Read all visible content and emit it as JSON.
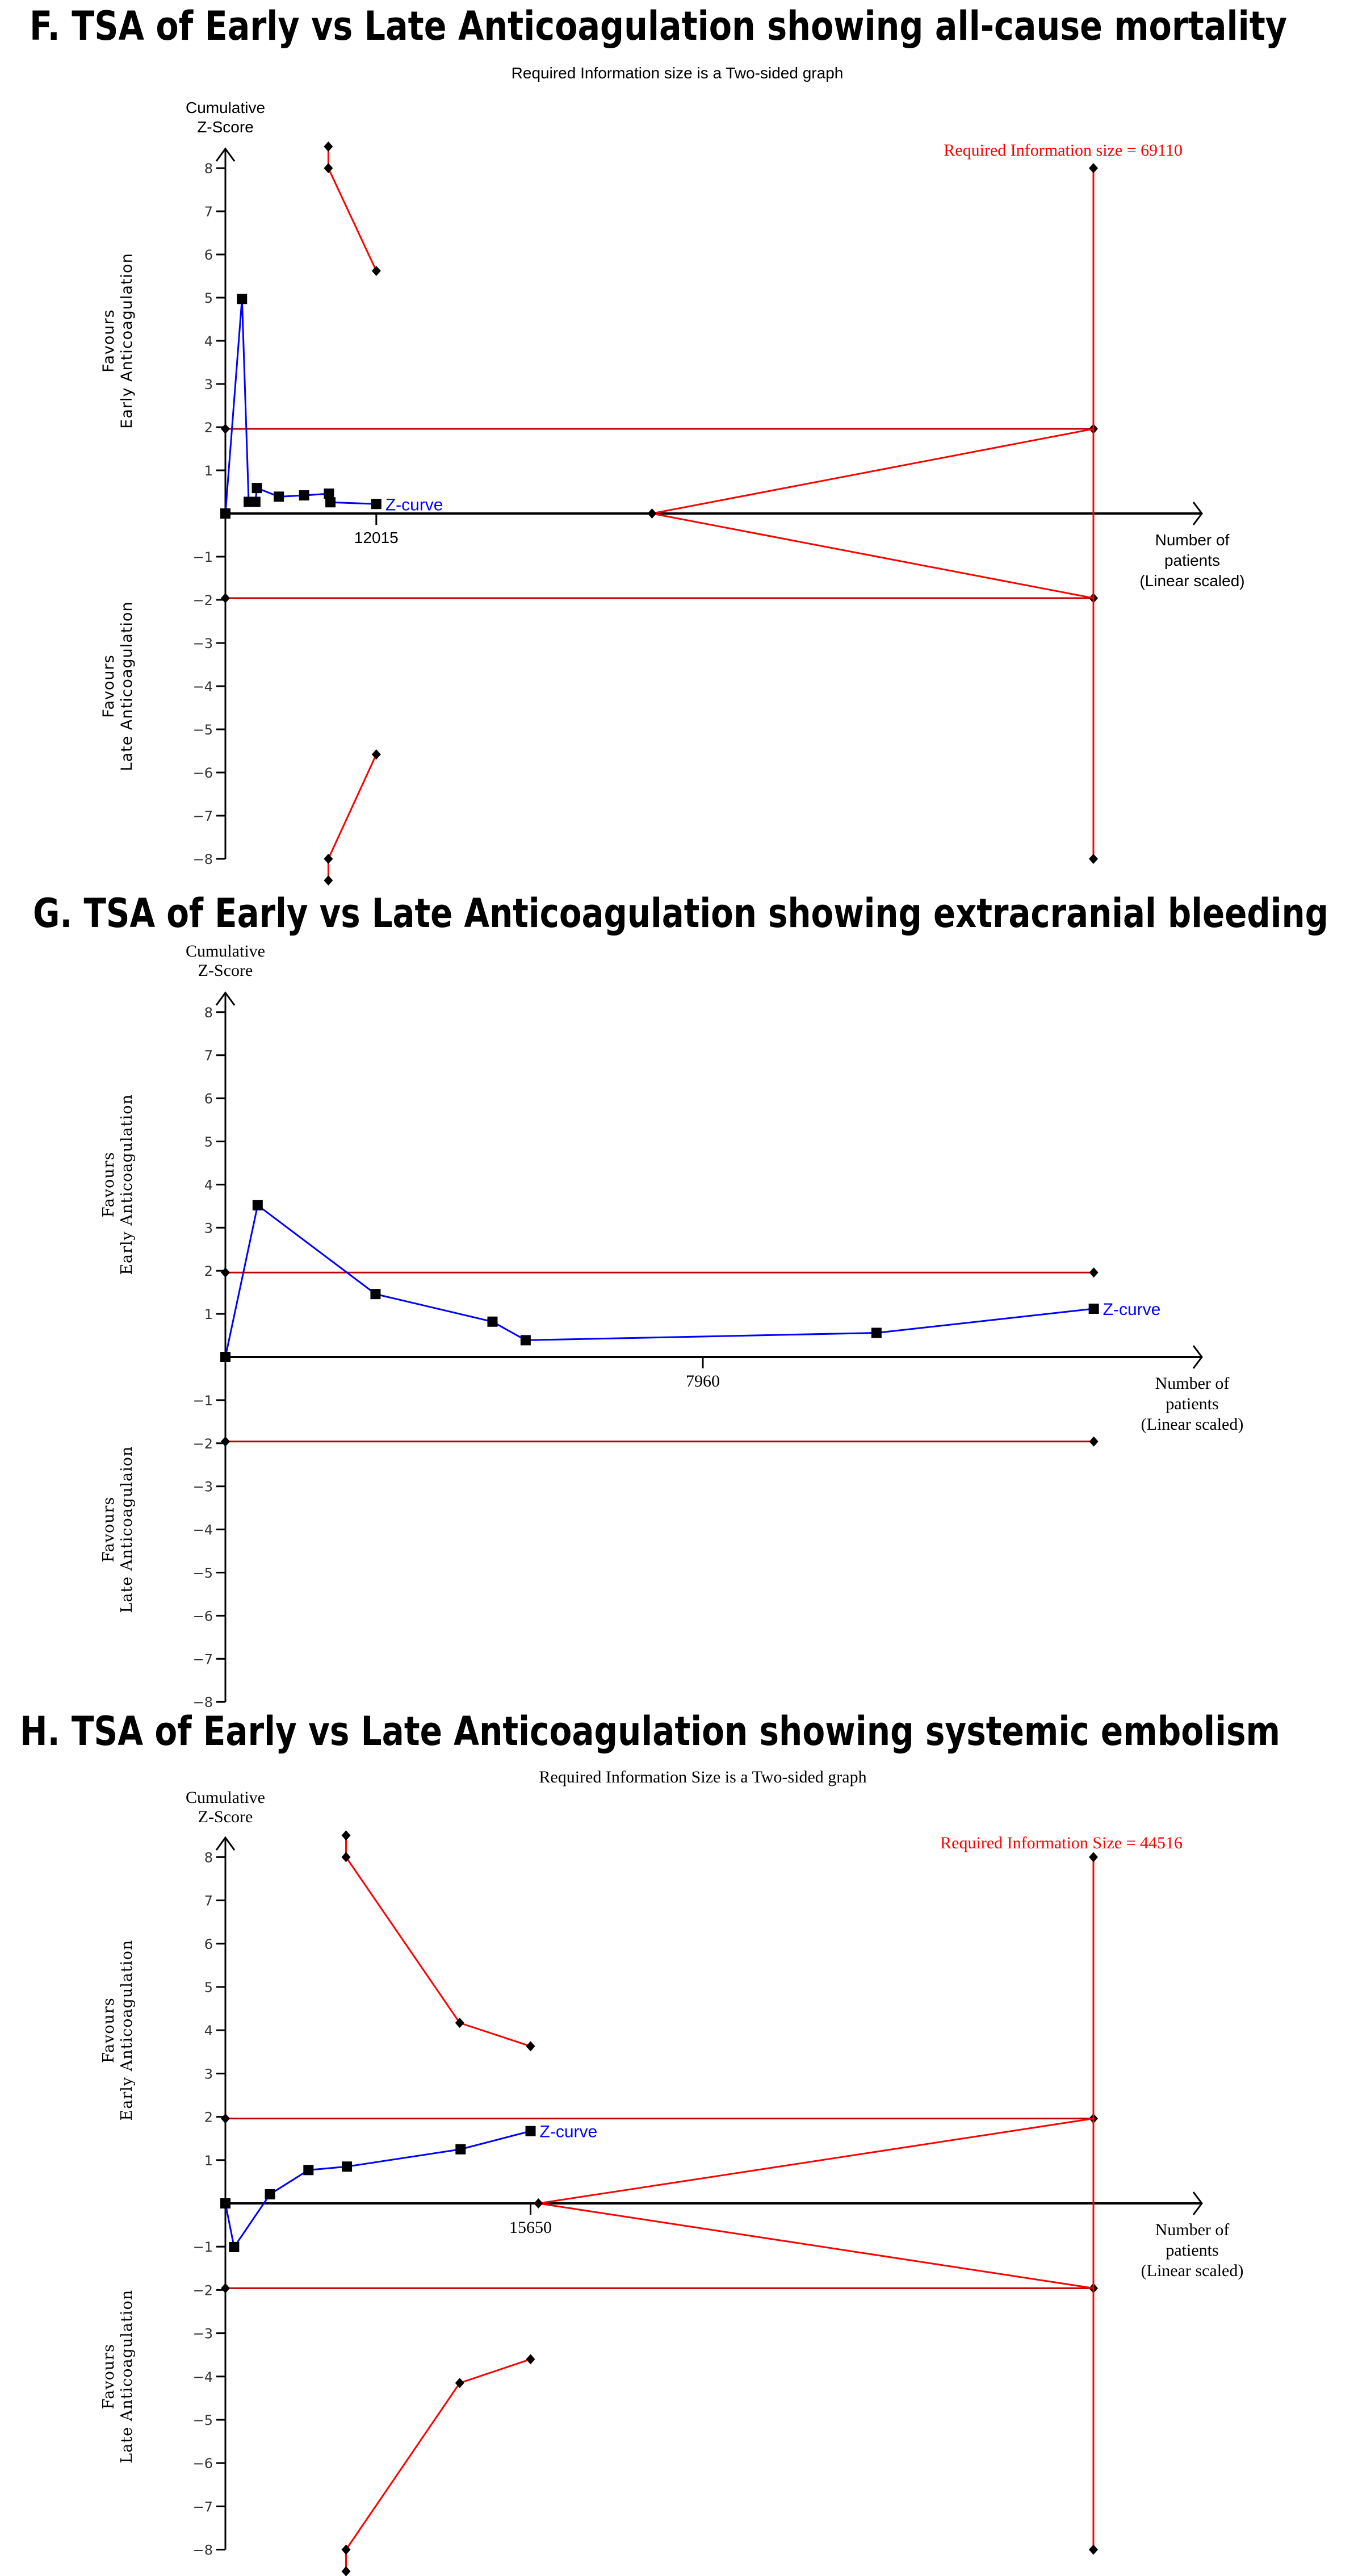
{
  "colors": {
    "z_curve": "#0000ff",
    "boundary": "#ff0000",
    "conventional": "#c00000",
    "axis": "#000000"
  },
  "chart_data": [
    {
      "type": "line",
      "title": "F. TSA of Early vs Late Anticoagulation showing all-cause mortality",
      "subtitle": "Required Information size is a Two-sided graph",
      "ylabel": [
        "Cumulative",
        "Z-Score"
      ],
      "xlabel": [
        "Number of",
        "patients",
        "(Linear scaled)"
      ],
      "side_labels": {
        "upper": [
          "Favours",
          "Early Anticoagulation"
        ],
        "lower": [
          "Favours",
          "Late Anticoagulation"
        ]
      },
      "x_tick_label": "12015",
      "x_tick": 12015,
      "y_ticks": [
        -8,
        -7,
        -6,
        -5,
        -4,
        -3,
        -2,
        -1,
        1,
        2,
        3,
        4,
        5,
        6,
        7,
        8
      ],
      "ylim": [
        -8,
        8
      ],
      "ris_label": "Required Information size = 69110",
      "ris": 69110,
      "z_curve_label": "Z-curve",
      "z_curve": [
        [
          0,
          0
        ],
        [
          1323,
          4.97
        ],
        [
          1856,
          0.27
        ],
        [
          2388,
          0.27
        ],
        [
          2509,
          0.59
        ],
        [
          4258,
          0.39
        ],
        [
          6266,
          0.42
        ],
        [
          8243,
          0.46
        ],
        [
          8365,
          0.26
        ],
        [
          12015,
          0.22
        ]
      ],
      "conventional_boundary": 1.96,
      "conventional_end": 69110,
      "monitoring_upper": [
        [
          8198,
          8.5
        ],
        [
          8198,
          8.0
        ],
        [
          12015,
          5.62
        ]
      ],
      "monitoring_lower": [
        [
          8198,
          -8.5
        ],
        [
          8198,
          -8.0
        ],
        [
          12015,
          -5.58
        ]
      ],
      "futility": {
        "start": 33965,
        "end": 69110,
        "end_z": 1.96
      }
    },
    {
      "type": "line",
      "title": "G. TSA of Early vs Late Anticoagulation showing extracranial bleeding",
      "subtitle": "",
      "ylabel": [
        "Cumulative",
        "Z-Score"
      ],
      "xlabel": [
        "Number of",
        "patients",
        "(Linear scaled)"
      ],
      "side_labels": {
        "upper": [
          "Favours",
          "Early Anticoagulation"
        ],
        "lower": [
          "Favours",
          "Late Anticoagulaion"
        ]
      },
      "x_tick_label": "7960",
      "x_tick": 7960,
      "y_ticks": [
        -8,
        -7,
        -6,
        -5,
        -4,
        -3,
        -2,
        -1,
        1,
        2,
        3,
        4,
        5,
        6,
        7,
        8
      ],
      "ylim": [
        -8,
        8
      ],
      "z_curve_label": "Z-curve",
      "z_curve": [
        [
          0,
          0
        ],
        [
          538,
          3.52
        ],
        [
          2503,
          1.46
        ],
        [
          4453,
          0.82
        ],
        [
          5006,
          0.39
        ],
        [
          10855,
          0.56
        ],
        [
          14478,
          1.12
        ]
      ],
      "conventional_boundary": 1.96,
      "conventional_end": 14478
    },
    {
      "type": "line",
      "title": "H. TSA of Early vs Late Anticoagulation showing systemic embolism",
      "subtitle": "Required Information Size is a Two-sided graph",
      "ylabel": [
        "Cumulative",
        "Z-Score"
      ],
      "xlabel": [
        "Number of",
        "patients",
        "(Linear scaled)"
      ],
      "side_labels": {
        "upper": [
          "Favours",
          "Early Anticoagulation"
        ],
        "lower": [
          "Favours",
          "Late Anticoagulation"
        ]
      },
      "x_tick_label": "15650",
      "x_tick": 15650,
      "y_ticks": [
        -8,
        -7,
        -6,
        -5,
        -4,
        -3,
        -2,
        -1,
        1,
        2,
        3,
        4,
        5,
        6,
        7,
        8
      ],
      "ylim": [
        -8,
        8
      ],
      "ris_label": "Required Information Size = 44516",
      "ris": 44516,
      "z_curve_label": "Z-curve",
      "z_curve": [
        [
          0,
          0
        ],
        [
          448,
          -1.01
        ],
        [
          2287,
          0.21
        ],
        [
          4260,
          0.77
        ],
        [
          6233,
          0.85
        ],
        [
          12062,
          1.25
        ],
        [
          15650,
          1.67
        ]
      ],
      "conventional_boundary": 1.96,
      "conventional_end": 44516,
      "monitoring_upper": [
        [
          6188,
          8.5
        ],
        [
          6188,
          8.0
        ],
        [
          12017,
          4.17
        ],
        [
          15650,
          3.63
        ]
      ],
      "monitoring_lower": [
        [
          6188,
          -8.5
        ],
        [
          6188,
          -8.0
        ],
        [
          12017,
          -4.15
        ],
        [
          15650,
          -3.6
        ]
      ],
      "futility": {
        "start": 16053,
        "end": 44516,
        "end_z": 1.96
      }
    }
  ]
}
